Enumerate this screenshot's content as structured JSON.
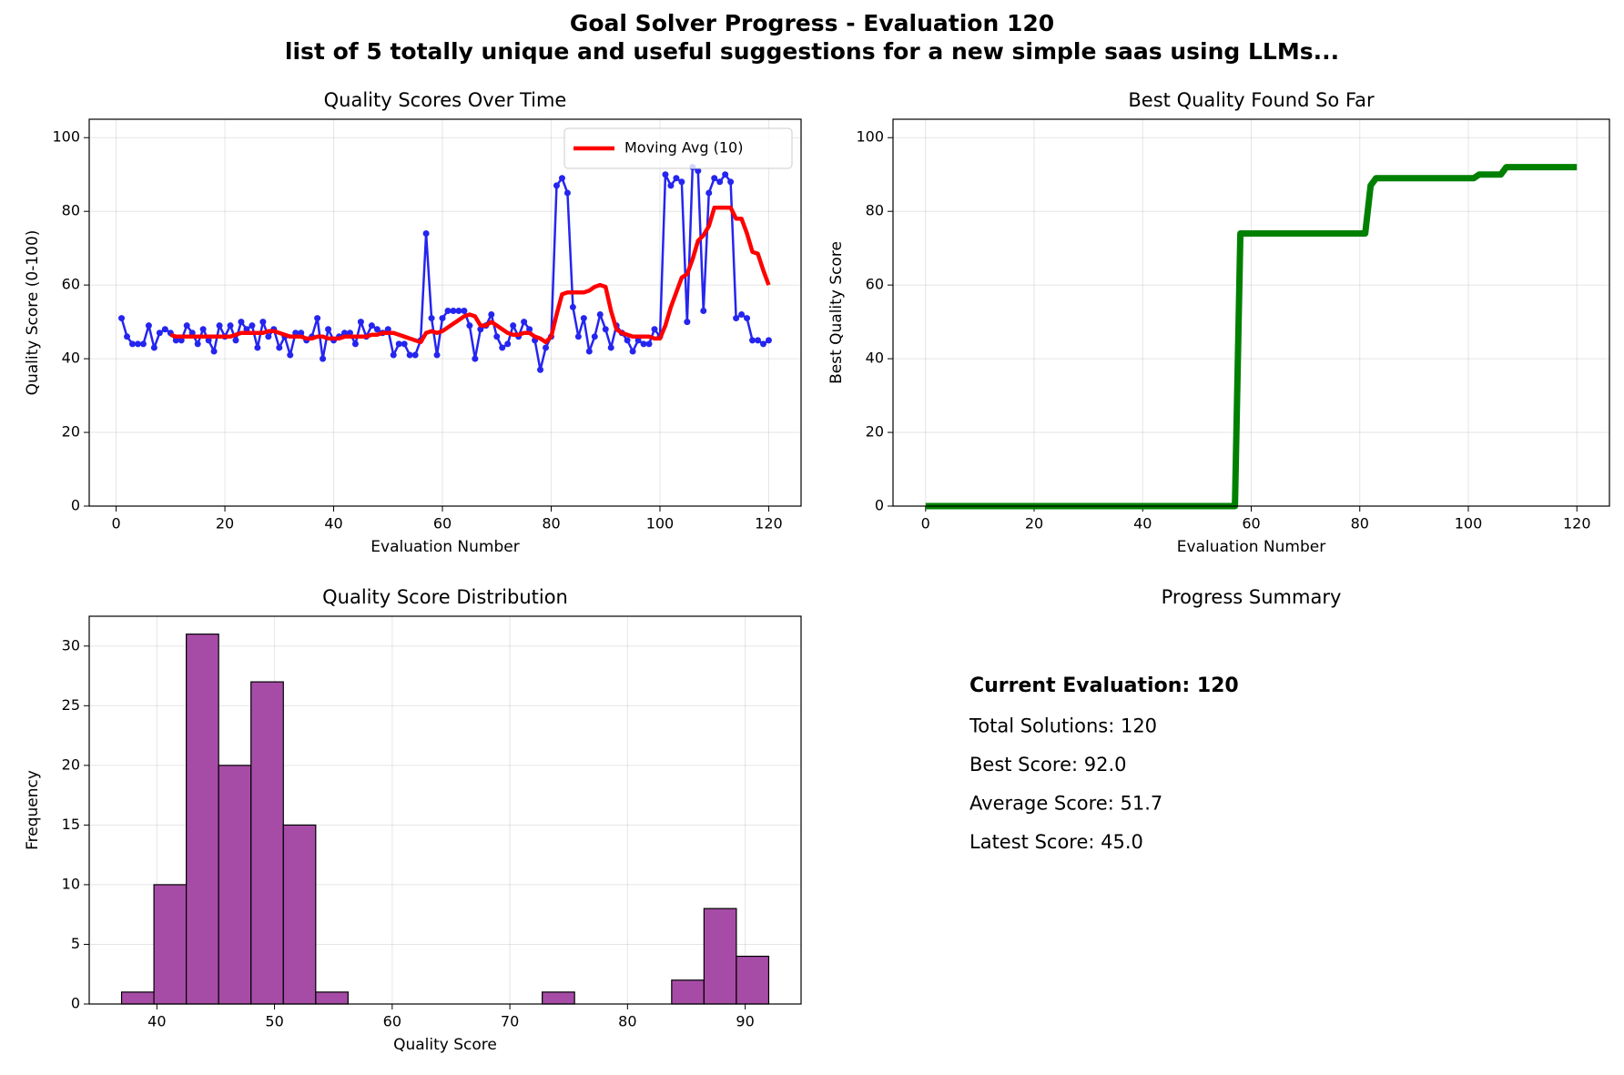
{
  "header": {
    "title": "Goal Solver Progress - Evaluation 120",
    "subtitle": "list of 5 totally unique and useful suggestions for a new simple saas using LLMs..."
  },
  "chart_data": [
    {
      "type": "line",
      "title": "Quality Scores Over Time",
      "xlabel": "Evaluation Number",
      "ylabel": "Quality Score (0-100)",
      "xlim": [
        -4.95,
        125.95
      ],
      "ylim": [
        0,
        105
      ],
      "xticks": [
        0,
        20,
        40,
        60,
        80,
        100,
        120
      ],
      "yticks": [
        0,
        20,
        40,
        60,
        80,
        100
      ],
      "grid": true,
      "legend": "upper right",
      "series": [
        {
          "color": "#2525ef",
          "marker": "o",
          "linewidth": 2.5,
          "x": [
            1,
            2,
            3,
            4,
            5,
            6,
            7,
            8,
            9,
            10,
            11,
            12,
            13,
            14,
            15,
            16,
            17,
            18,
            19,
            20,
            21,
            22,
            23,
            24,
            25,
            26,
            27,
            28,
            29,
            30,
            31,
            32,
            33,
            34,
            35,
            36,
            37,
            38,
            39,
            40,
            41,
            42,
            43,
            44,
            45,
            46,
            47,
            48,
            49,
            50,
            51,
            52,
            53,
            54,
            55,
            56,
            57,
            58,
            59,
            60,
            61,
            62,
            63,
            64,
            65,
            66,
            67,
            68,
            69,
            70,
            71,
            72,
            73,
            74,
            75,
            76,
            77,
            78,
            79,
            80,
            81,
            82,
            83,
            84,
            85,
            86,
            87,
            88,
            89,
            90,
            91,
            92,
            93,
            94,
            95,
            96,
            97,
            98,
            99,
            100,
            101,
            102,
            103,
            104,
            105,
            106,
            107,
            108,
            109,
            110,
            111,
            112,
            113,
            114,
            115,
            116,
            117,
            118,
            119,
            120
          ],
          "values": [
            51,
            46,
            44,
            44,
            44,
            49,
            43,
            47,
            48,
            47,
            45,
            45,
            49,
            47,
            44,
            48,
            45,
            42,
            49,
            46,
            49,
            45,
            50,
            48,
            49,
            43,
            50,
            46,
            48,
            43,
            46,
            41,
            47,
            47,
            45,
            46,
            51,
            40,
            48,
            45,
            46,
            47,
            47,
            44,
            50,
            46,
            49,
            48,
            47,
            48,
            41,
            44,
            44,
            41,
            41,
            45,
            74,
            51,
            41,
            51,
            53,
            53,
            53,
            53,
            49,
            40,
            48,
            49,
            52,
            46,
            43,
            44,
            49,
            46,
            50,
            48,
            45,
            37,
            43,
            46,
            87,
            89,
            85,
            54,
            46,
            51,
            42,
            46,
            52,
            48,
            43,
            49,
            47,
            45,
            42,
            45,
            44,
            44,
            48,
            46,
            90,
            87,
            89,
            88,
            50,
            92,
            91,
            53,
            85,
            89,
            88,
            90,
            88,
            51,
            52,
            51,
            45,
            45,
            44,
            45
          ]
        },
        {
          "name": "Moving Avg (10)",
          "color": "#ff0000",
          "linewidth": 4.5,
          "x": [
            10,
            11,
            12,
            13,
            14,
            15,
            16,
            17,
            18,
            19,
            20,
            21,
            22,
            23,
            24,
            25,
            26,
            27,
            28,
            29,
            30,
            31,
            32,
            33,
            34,
            35,
            36,
            37,
            38,
            39,
            40,
            41,
            42,
            43,
            44,
            45,
            46,
            47,
            48,
            49,
            50,
            51,
            52,
            53,
            54,
            55,
            56,
            57,
            58,
            59,
            60,
            61,
            62,
            63,
            64,
            65,
            66,
            67,
            68,
            69,
            70,
            71,
            72,
            73,
            74,
            75,
            76,
            77,
            78,
            79,
            80,
            81,
            82,
            83,
            84,
            85,
            86,
            87,
            88,
            89,
            90,
            91,
            92,
            93,
            94,
            95,
            96,
            97,
            98,
            99,
            100,
            101,
            102,
            103,
            104,
            105,
            106,
            107,
            108,
            109,
            110,
            111,
            112,
            113,
            114,
            115,
            116,
            117,
            118,
            119,
            120
          ],
          "values": [
            46.5,
            46,
            46,
            46,
            46,
            46,
            46,
            46,
            46,
            46,
            46,
            46,
            46.5,
            47,
            47,
            47,
            47,
            47,
            47.5,
            47.5,
            47,
            46.5,
            46,
            46,
            46,
            45.5,
            45.5,
            46,
            46,
            45.5,
            45.5,
            45.5,
            46,
            46,
            46,
            46,
            46,
            46.5,
            46.5,
            47,
            47,
            47,
            46.5,
            46,
            45.5,
            45,
            44.5,
            47,
            47.5,
            47,
            47.5,
            48.5,
            49.5,
            50.5,
            51.5,
            52,
            51.5,
            49,
            49,
            50,
            49,
            48,
            47,
            46.5,
            46.5,
            47,
            47,
            46,
            45.5,
            44.5,
            46,
            52,
            57.5,
            58,
            58,
            58,
            58,
            58.5,
            59.5,
            60,
            59.5,
            53,
            48,
            47,
            46.5,
            46,
            46,
            46,
            46,
            45.5,
            45.5,
            49,
            54,
            58,
            62,
            63,
            67,
            72,
            73.5,
            76,
            81,
            81,
            81,
            81,
            78,
            78,
            74,
            69,
            68.5,
            64,
            60
          ]
        }
      ]
    },
    {
      "type": "line",
      "title": "Best Quality Found So Far",
      "xlabel": "Evaluation Number",
      "ylabel": "Best Quality Score",
      "xlim": [
        -6,
        126
      ],
      "ylim": [
        0,
        105
      ],
      "xticks": [
        0,
        20,
        40,
        60,
        80,
        100,
        120
      ],
      "yticks": [
        0,
        20,
        40,
        60,
        80,
        100
      ],
      "grid": true,
      "series": [
        {
          "color": "#008000",
          "linewidth": 7,
          "x": [
            0,
            57,
            58,
            81,
            82,
            83,
            101,
            102,
            106,
            107,
            120
          ],
          "values": [
            0,
            0,
            74,
            74,
            87,
            89,
            89,
            90,
            90,
            92,
            92
          ]
        }
      ]
    },
    {
      "type": "histogram",
      "title": "Quality Score Distribution",
      "xlabel": "Quality Score",
      "ylabel": "Frequency",
      "xlim": [
        34.25,
        94.75
      ],
      "ylim": [
        0,
        32.5
      ],
      "xticks": [
        40,
        50,
        60,
        70,
        80,
        90
      ],
      "yticks": [
        0,
        5,
        10,
        15,
        20,
        25,
        30
      ],
      "grid": true,
      "color": "#a64ca6",
      "edgecolor": "#000000",
      "bins": [
        37,
        39.75,
        42.5,
        45.25,
        48,
        50.75,
        53.5,
        56.25,
        59,
        61.75,
        64.5,
        67.25,
        70,
        72.75,
        75.5,
        78.25,
        81,
        83.75,
        86.5,
        89.25,
        92
      ],
      "values": [
        1,
        10,
        31,
        20,
        27,
        15,
        1,
        0,
        0,
        0,
        0,
        0,
        0,
        1,
        0,
        0,
        0,
        2,
        8,
        4
      ]
    },
    {
      "type": "text",
      "title": "Progress Summary",
      "lines": [
        "Current Evaluation: 120",
        "Total Solutions: 120",
        "Best Score: 92.0",
        "Average Score: 51.7",
        "Latest Score: 45.0"
      ]
    }
  ]
}
